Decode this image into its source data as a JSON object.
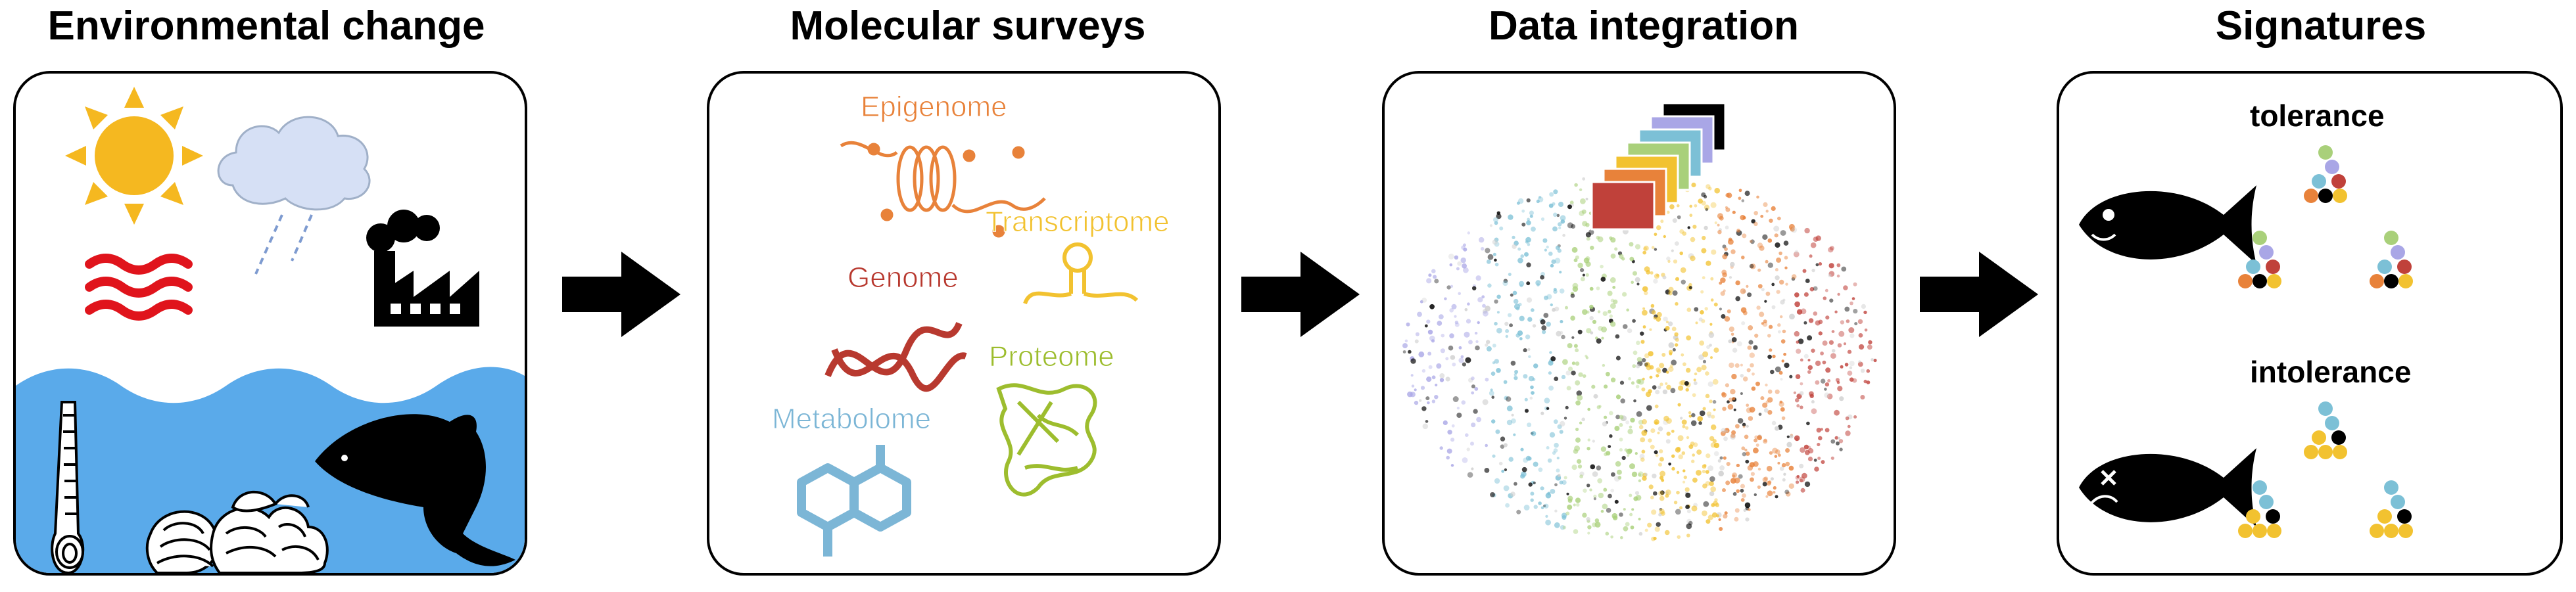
{
  "panels": [
    {
      "title": "Environmental change"
    },
    {
      "title": "Molecular surveys"
    },
    {
      "title": "Data integration"
    },
    {
      "title": "Signatures"
    }
  ],
  "omics": {
    "epigenome": "Epigenome",
    "transcriptome": "Transcriptome",
    "genome": "Genome",
    "proteome": "Proteome",
    "metabolome": "Metabolome"
  },
  "signatures": {
    "tolerance_label": "tolerance",
    "intolerance_label": "intolerance"
  },
  "colors": {
    "epigenome": "#e8823a",
    "transcriptome": "#f2c230",
    "genome": "#b8392f",
    "proteome": "#9dbd2e",
    "metabolome": "#7cb6d6",
    "water": "#5aaaea",
    "sun": "#f5b820",
    "waves": "#e0141c",
    "layers": [
      "#c0413a",
      "#e8823a",
      "#f2c230",
      "#a9d07a",
      "#7cc0d6",
      "#a9a6e6",
      "#000000"
    ]
  }
}
